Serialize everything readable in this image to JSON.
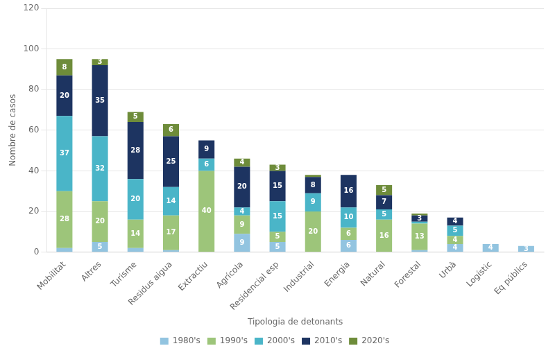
{
  "chart_data": {
    "type": "bar",
    "stacked": true,
    "xlabel": "Tipologia de detonants",
    "ylabel": "Nombre de casos",
    "categories": [
      "Mobilitat",
      "Altres",
      "Turisme",
      "Residus aigua",
      "Extractiu",
      "Agrícola",
      "Residencial esp",
      "Industrial",
      "Energia",
      "Natural",
      "Forestal",
      "Urbà",
      "Logístic",
      "Eq públics"
    ],
    "series": [
      {
        "name": "1980's",
        "color": "#92c4e0",
        "values": [
          2,
          5,
          2,
          1,
          0,
          9,
          5,
          0,
          6,
          0,
          1,
          4,
          4,
          3
        ],
        "value_labels": [
          null,
          "5",
          null,
          null,
          null,
          "9",
          "5",
          null,
          "6",
          null,
          null,
          "4",
          "4",
          "3"
        ]
      },
      {
        "name": "1990's",
        "color": "#9dc57a",
        "values": [
          28,
          20,
          14,
          17,
          40,
          9,
          5,
          20,
          6,
          16,
          13,
          4,
          0,
          0
        ],
        "value_labels": [
          "28",
          "20",
          "14",
          "17",
          "40",
          "9",
          "5",
          "20",
          "6",
          "16",
          "13",
          "4",
          null,
          null
        ]
      },
      {
        "name": "2000's",
        "color": "#4ab5c8",
        "values": [
          37,
          32,
          20,
          14,
          6,
          4,
          15,
          9,
          10,
          5,
          1,
          5,
          0,
          0
        ],
        "value_labels": [
          "37",
          "32",
          "20",
          "14",
          "6",
          "4",
          "15",
          "9",
          "10",
          "5",
          null,
          "5",
          null,
          null
        ]
      },
      {
        "name": "2010's",
        "color": "#1d3461",
        "values": [
          20,
          35,
          28,
          25,
          9,
          20,
          15,
          8,
          16,
          7,
          3,
          4,
          0,
          0
        ],
        "value_labels": [
          "20",
          "35",
          "28",
          "25",
          "9",
          "20",
          "15",
          "8",
          "16",
          "7",
          "3",
          "4",
          null,
          null
        ]
      },
      {
        "name": "2020's",
        "color": "#6e8c3a",
        "values": [
          8,
          3,
          5,
          6,
          0,
          4,
          3,
          1,
          0,
          5,
          1,
          0,
          0,
          0
        ],
        "value_labels": [
          "8",
          "3",
          "5",
          "6",
          null,
          "4",
          "3",
          null,
          null,
          "5",
          null,
          null,
          null,
          null
        ]
      }
    ],
    "ylim": [
      0,
      120
    ],
    "yticks": [
      0,
      20,
      40,
      60,
      80,
      100,
      120
    ],
    "grid": true,
    "legend": "bottom",
    "data_labels": true
  }
}
